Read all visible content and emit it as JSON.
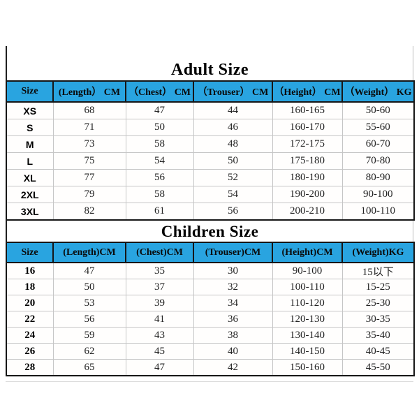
{
  "colors": {
    "header_bg": "#29a4e0",
    "grid_line": "#c6c6c6",
    "outer_border": "#161616"
  },
  "adult": {
    "title": "Adult Size",
    "headers": [
      "Size",
      "(Length） CM",
      "（Chest） CM",
      "（Trouser） CM",
      "（Height） CM",
      "（Weight） KG"
    ],
    "rows": [
      [
        "XS",
        "68",
        "47",
        "44",
        "160-165",
        "50-60"
      ],
      [
        "S",
        "71",
        "50",
        "46",
        "160-170",
        "55-60"
      ],
      [
        "M",
        "73",
        "58",
        "48",
        "172-175",
        "60-70"
      ],
      [
        "L",
        "75",
        "54",
        "50",
        "175-180",
        "70-80"
      ],
      [
        "XL",
        "77",
        "56",
        "52",
        "180-190",
        "80-90"
      ],
      [
        "2XL",
        "79",
        "58",
        "54",
        "190-200",
        "90-100"
      ],
      [
        "3XL",
        "82",
        "61",
        "56",
        "200-210",
        "100-110"
      ]
    ]
  },
  "children": {
    "title": "Children Size",
    "headers": [
      "Size",
      "(Length)CM",
      "(Chest)CM",
      "(Trouser)CM",
      "(Height)CM",
      "(Weight)KG"
    ],
    "rows": [
      [
        "16",
        "47",
        "35",
        "30",
        "90-100",
        "15以下"
      ],
      [
        "18",
        "50",
        "37",
        "32",
        "100-110",
        "15-25"
      ],
      [
        "20",
        "53",
        "39",
        "34",
        "110-120",
        "25-30"
      ],
      [
        "22",
        "56",
        "41",
        "36",
        "120-130",
        "30-35"
      ],
      [
        "24",
        "59",
        "43",
        "38",
        "130-140",
        "35-40"
      ],
      [
        "26",
        "62",
        "45",
        "40",
        "140-150",
        "40-45"
      ],
      [
        "28",
        "65",
        "47",
        "42",
        "150-160",
        "45-50"
      ]
    ]
  }
}
